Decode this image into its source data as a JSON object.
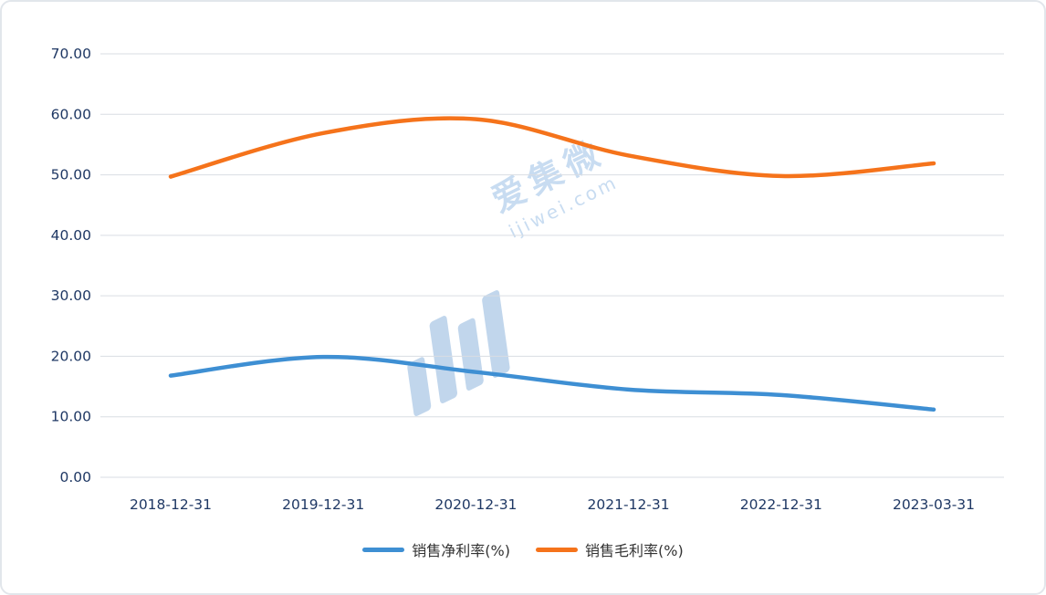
{
  "chart_data": {
    "type": "line",
    "categories": [
      "2018-12-31",
      "2019-12-31",
      "2020-12-31",
      "2021-12-31",
      "2022-12-31",
      "2023-03-31"
    ],
    "series": [
      {
        "id": "net-margin",
        "name": "销售净利率(%)",
        "color": "#3e8fd3",
        "values": [
          16.8,
          19.9,
          17.4,
          14.5,
          13.6,
          11.2
        ]
      },
      {
        "id": "gross-margin",
        "name": "销售毛利率(%)",
        "color": "#f5731b",
        "values": [
          49.7,
          56.9,
          59.2,
          53.2,
          49.8,
          51.9
        ]
      }
    ],
    "title": "",
    "xlabel": "",
    "ylabel": "",
    "ylim": [
      0,
      70
    ],
    "ytick_values": [
      0,
      10,
      20,
      30,
      40,
      50,
      60,
      70
    ],
    "ytick_labels": [
      "0.00",
      "10.00",
      "20.00",
      "30.00",
      "40.00",
      "50.00",
      "60.00",
      "70.00"
    ],
    "grid": true,
    "legend_position": "bottom"
  },
  "watermark": {
    "text": "爱集微",
    "subtext": "ijiwei.com"
  },
  "colors": {
    "axis_label": "#1f3864",
    "gridline": "#d9dde3",
    "net_margin_line": "#3e8fd3",
    "gross_margin_line": "#f5731b",
    "watermark": "#9cc0e6",
    "card_border": "#e2e6eb",
    "background": "#ffffff"
  }
}
